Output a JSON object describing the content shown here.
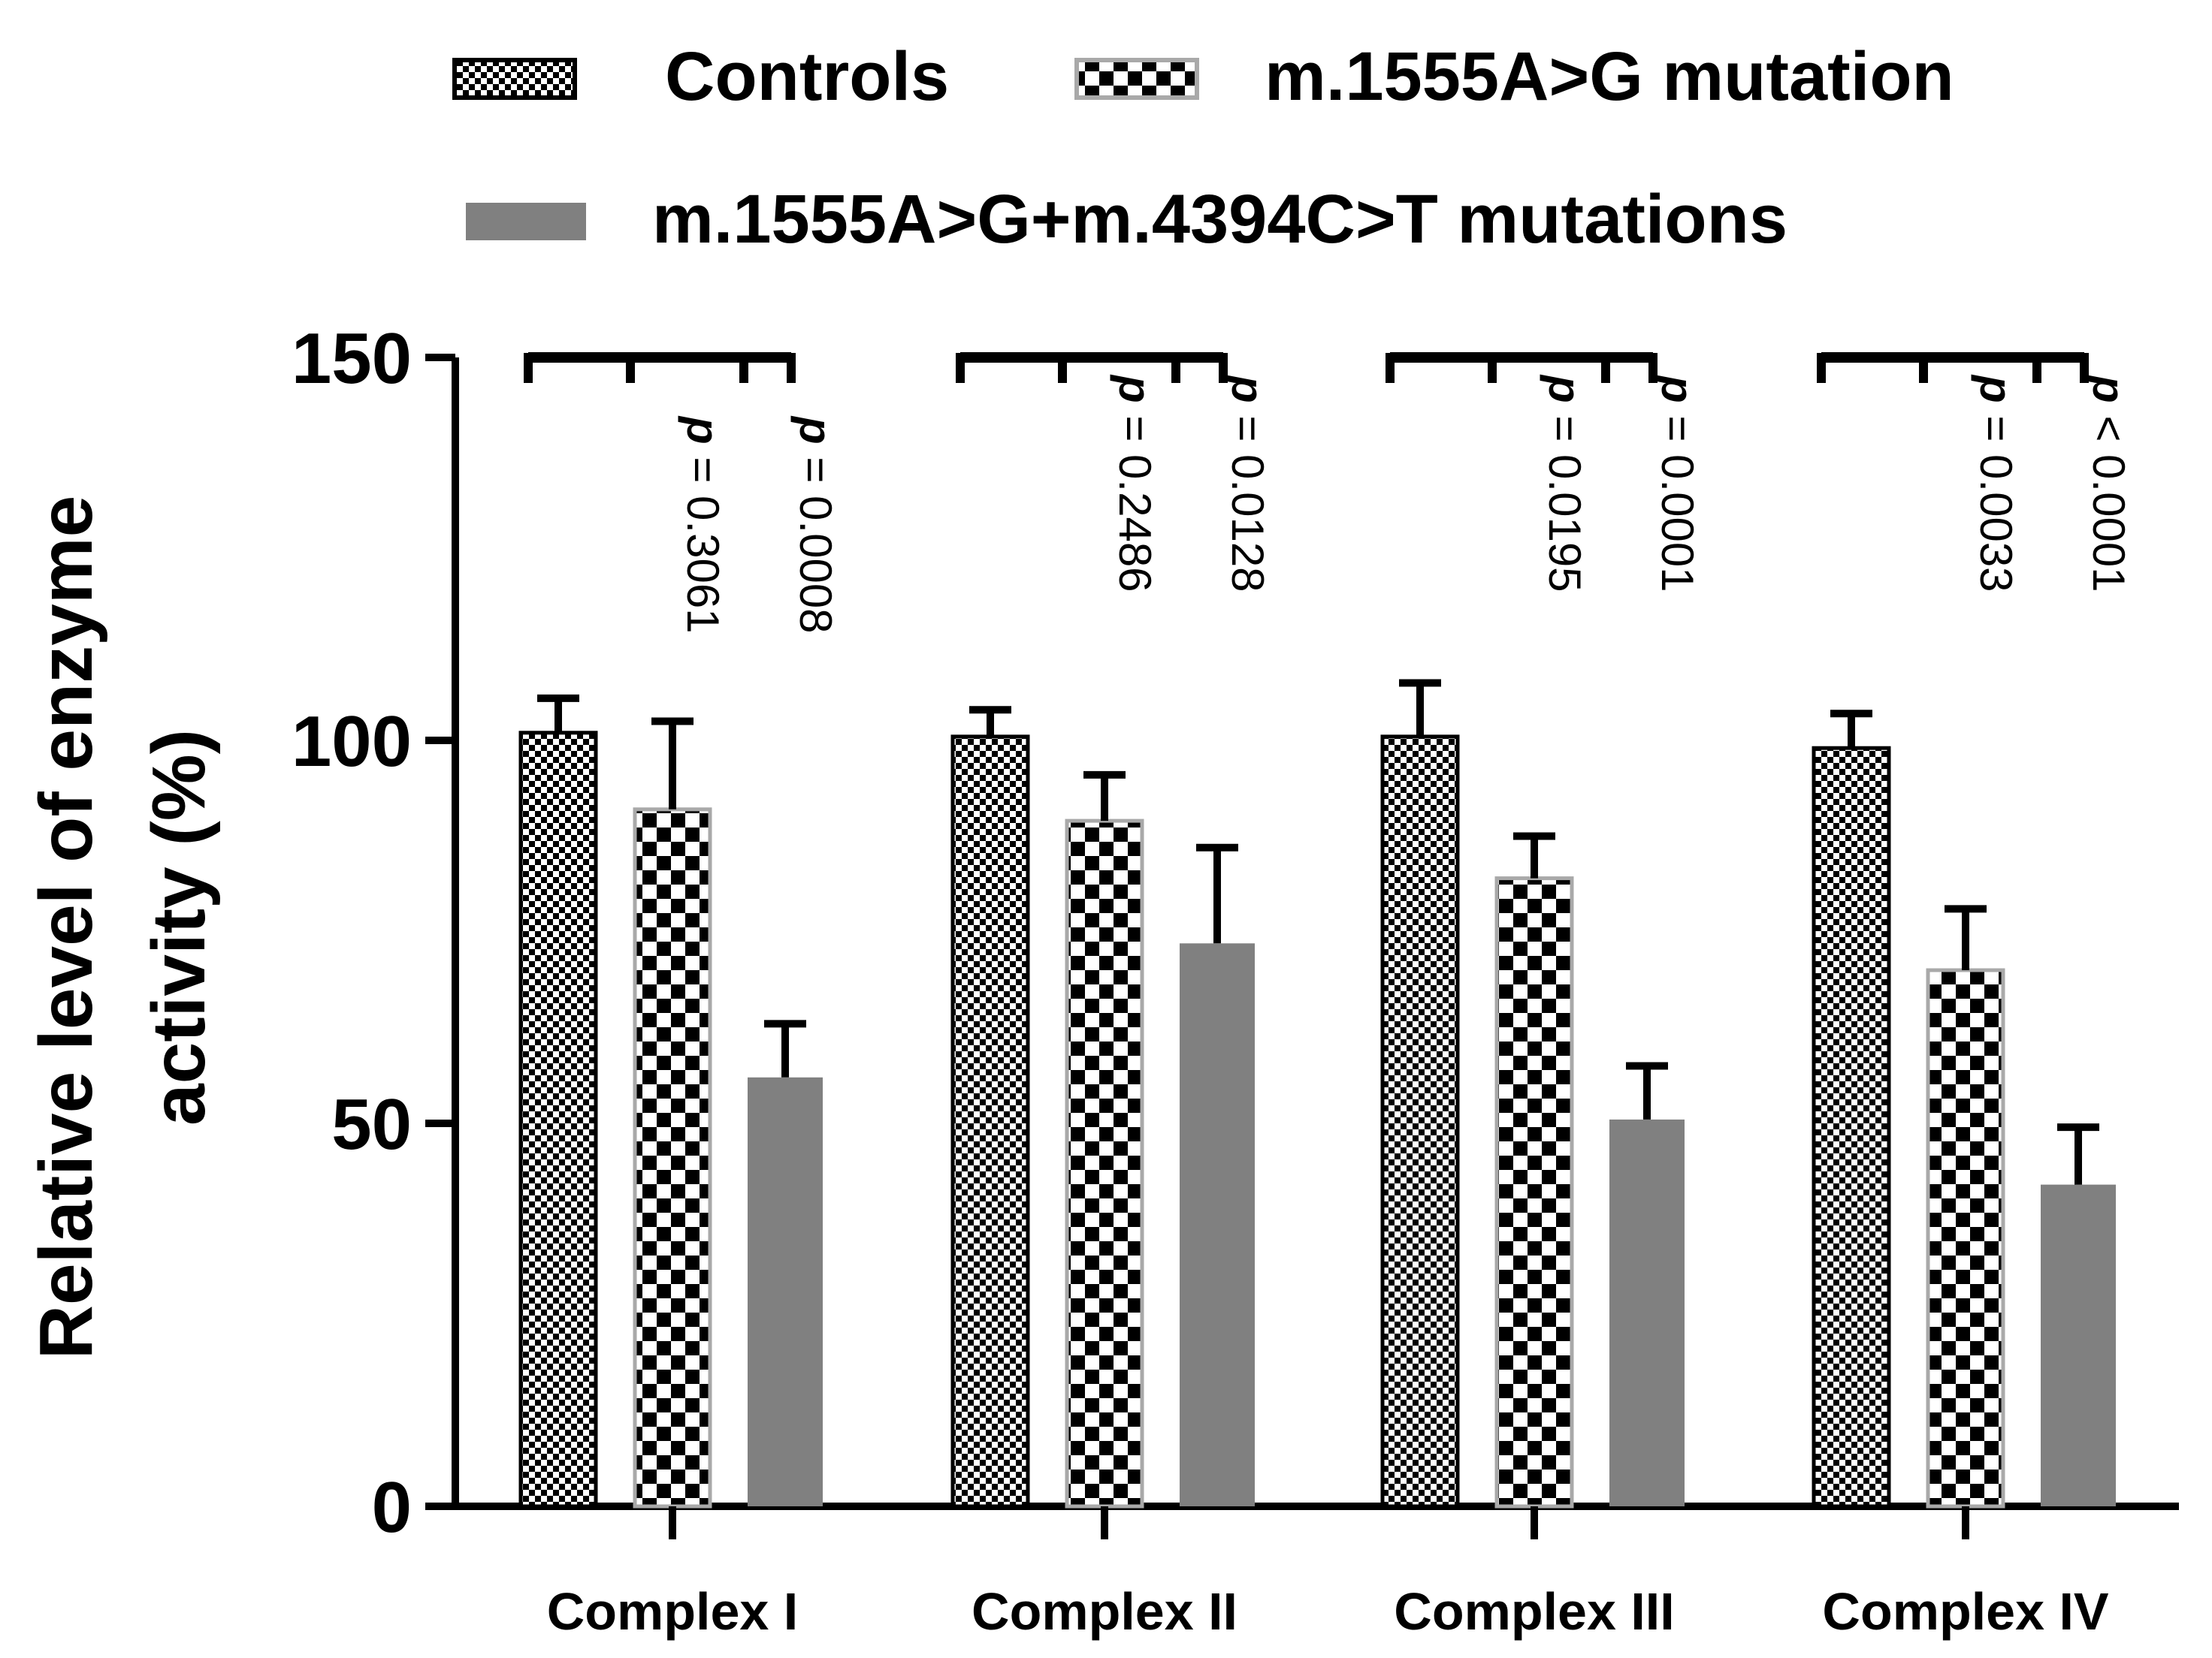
{
  "chart_data": {
    "type": "bar",
    "title": "",
    "xlabel": "",
    "ylabel_lines": [
      "Relative level of enzyme",
      "activity (%)"
    ],
    "ylim": [
      0,
      150
    ],
    "yticks": [
      0,
      50,
      100,
      150
    ],
    "categories": [
      "Complex I",
      "Complex II",
      "Complex III",
      "Complex IV"
    ],
    "legend_position": "top",
    "series": [
      {
        "name": "Controls",
        "pattern": "fine-checker",
        "values": [
          101,
          100.5,
          100.5,
          99
        ],
        "errors": [
          4.5,
          3.5,
          7,
          4.5
        ]
      },
      {
        "name": "m.1555A>G mutation",
        "pattern": "coarse-checker",
        "values": [
          91,
          89.5,
          82,
          70
        ],
        "errors": [
          11.5,
          6,
          5.5,
          8
        ]
      },
      {
        "name": "m.1555A>G+m.4394C>T mutations",
        "pattern": "solid-gray",
        "values": [
          56,
          73.5,
          50.5,
          42
        ],
        "errors": [
          7,
          12.5,
          7,
          7.5
        ]
      }
    ],
    "comparisons": [
      {
        "category": "Complex I",
        "p_values": [
          {
            "prefix": "p",
            "text": " = 0.3061"
          },
          {
            "prefix": "p",
            "text": " = 0.0008"
          }
        ]
      },
      {
        "category": "Complex II",
        "p_values": [
          {
            "prefix": "p",
            "text": " = 0.2486"
          },
          {
            "prefix": "p",
            "text": " = 0.0128"
          }
        ]
      },
      {
        "category": "Complex III",
        "p_values": [
          {
            "prefix": "p",
            "text": " = 0.0195"
          },
          {
            "prefix": "p",
            "text": " = 0.0001"
          }
        ]
      },
      {
        "category": "Complex IV",
        "p_values": [
          {
            "prefix": "p",
            "text": " = 0.0033"
          },
          {
            "prefix": "p",
            "text": " < 0.0001"
          }
        ]
      }
    ],
    "colors": {
      "axis": "#000000",
      "bar_gray": "#808080",
      "pattern_dark": "#000000",
      "pattern_light": "#ffffff",
      "bar_outline_light": "#a9a9a9"
    }
  }
}
